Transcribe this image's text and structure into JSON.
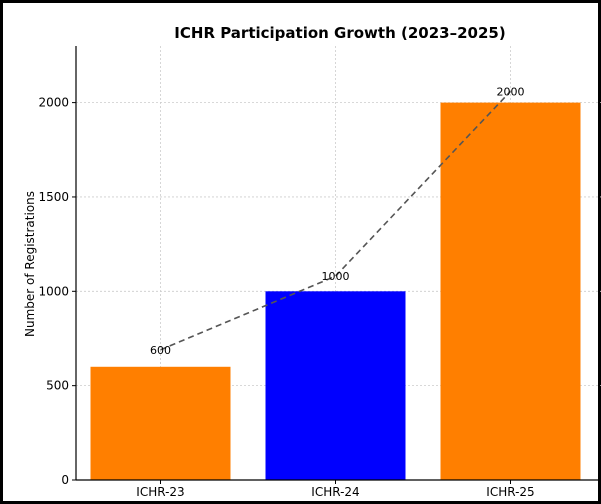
{
  "chart_data": {
    "type": "bar",
    "title": "ICHR Participation Growth (2023–2025)",
    "xlabel": "",
    "ylabel": "Number of Registrations",
    "categories": [
      "ICHR-23",
      "ICHR-24",
      "ICHR-25"
    ],
    "values": [
      600,
      1000,
      2000
    ],
    "bar_colors": [
      "#ff7f00",
      "#0000ff",
      "#ff7f00"
    ],
    "data_labels": [
      "600",
      "1000",
      "2000"
    ],
    "overlay_line": {
      "style": "dashed",
      "color": "#555555",
      "values": [
        690,
        1080,
        2060
      ]
    },
    "ylim": [
      0,
      2300
    ],
    "yticks": [
      0,
      500,
      1000,
      1500,
      2000
    ],
    "grid": true,
    "legend": "none"
  }
}
